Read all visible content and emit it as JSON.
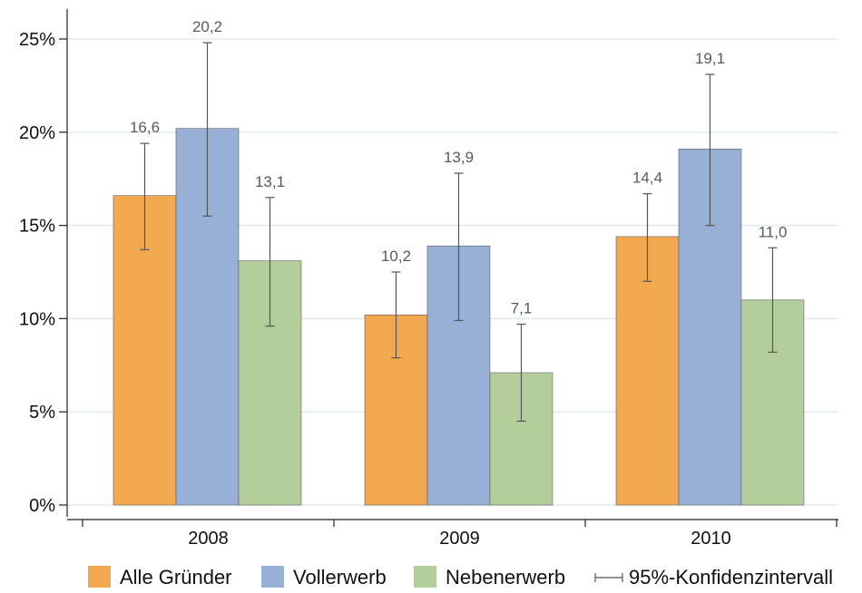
{
  "chart_data": {
    "type": "bar",
    "categories": [
      "2008",
      "2009",
      "2010"
    ],
    "series": [
      {
        "name": "Alle Gründer",
        "color": "#F2A84F",
        "values": [
          16.6,
          10.2,
          14.4
        ],
        "ci_low": [
          13.7,
          7.9,
          12.0
        ],
        "ci_high": [
          19.4,
          12.5,
          16.7
        ]
      },
      {
        "name": "Vollerwerb",
        "color": "#98AFD6",
        "values": [
          20.2,
          13.9,
          19.1
        ],
        "ci_low": [
          15.5,
          9.9,
          15.0
        ],
        "ci_high": [
          24.8,
          17.8,
          23.1
        ]
      },
      {
        "name": "Nebenerwerb",
        "color": "#B3CE9B",
        "values": [
          13.1,
          7.1,
          11.0
        ],
        "ci_low": [
          9.6,
          4.5,
          8.2
        ],
        "ci_high": [
          16.5,
          9.7,
          13.8
        ]
      }
    ],
    "value_labels": [
      [
        "16,6",
        "10,2",
        "14,4"
      ],
      [
        "20,2",
        "13,9",
        "19,1"
      ],
      [
        "13,1",
        "7,1",
        "11,0"
      ]
    ],
    "y_ticks": [
      0,
      5,
      10,
      15,
      20,
      25
    ],
    "y_tick_labels": [
      "0%",
      "5%",
      "10%",
      "15%",
      "20%",
      "25%"
    ],
    "ylim": [
      0,
      26.5
    ],
    "grid": true,
    "error_bars": true,
    "ci_legend_label": "95%-Konfidenzintervall",
    "legend_position": "bottom"
  }
}
